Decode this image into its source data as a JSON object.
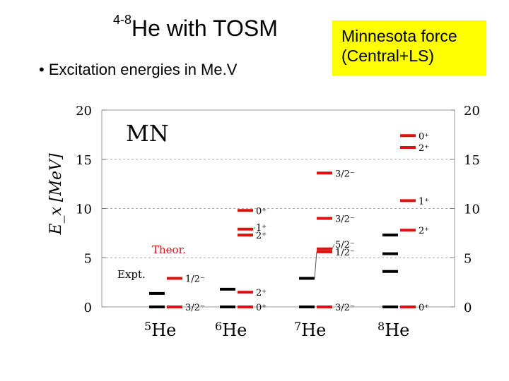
{
  "header": {
    "title_superscript": "4-8",
    "title_main": "He  with TOSM",
    "bullet": "• Excitation energies in Me.V"
  },
  "callout": {
    "line1": "Minnesota force",
    "line2": " (Central+LS)",
    "color": "#ffff00"
  },
  "diagram": {
    "panel_label": "MN",
    "ylabel": "E_x [MeV]",
    "theor_label": "Theor.",
    "expt_label": "Expt.",
    "yticks": [
      "0",
      "5",
      "10",
      "15",
      "20"
    ],
    "colors": {
      "theory": "#e01010",
      "experiment": "#000000",
      "theor_text": "#e01010",
      "grid": "#aaaaaa"
    },
    "nuclei": [
      {
        "mass": "5",
        "symbol": "He",
        "expt": [
          0,
          1.37
        ],
        "theory": [
          {
            "e": 0,
            "label": "3/2⁻"
          },
          {
            "e": 2.9,
            "label": "1/2⁻"
          }
        ]
      },
      {
        "mass": "6",
        "symbol": "He",
        "expt": [
          0,
          1.8
        ],
        "theory": [
          {
            "e": 0,
            "label": "0⁺"
          },
          {
            "e": 1.5,
            "label": "2⁺"
          },
          {
            "e": 7.3,
            "label": "2⁺"
          },
          {
            "e": 7.9,
            "label": "1⁺"
          },
          {
            "e": 9.8,
            "label": "0⁺"
          }
        ]
      },
      {
        "mass": "7",
        "symbol": "He",
        "expt": [
          0,
          2.9
        ],
        "theory": [
          {
            "e": 0,
            "label": "3/2⁻"
          },
          {
            "e": 5.6,
            "label": "1/2⁻"
          },
          {
            "e": 5.9,
            "label": "5/2⁻"
          },
          {
            "e": 9.0,
            "label": "3/2⁻"
          },
          {
            "e": 13.6,
            "label": "3/2⁻"
          }
        ]
      },
      {
        "mass": "8",
        "symbol": "He",
        "expt": [
          0,
          3.6,
          5.4,
          7.3
        ],
        "theory": [
          {
            "e": 0,
            "label": "0⁺"
          },
          {
            "e": 7.8,
            "label": "2⁺"
          },
          {
            "e": 10.8,
            "label": "1⁺"
          },
          {
            "e": 16.2,
            "label": "2⁺"
          },
          {
            "e": 17.4,
            "label": "0⁺"
          }
        ]
      }
    ]
  }
}
